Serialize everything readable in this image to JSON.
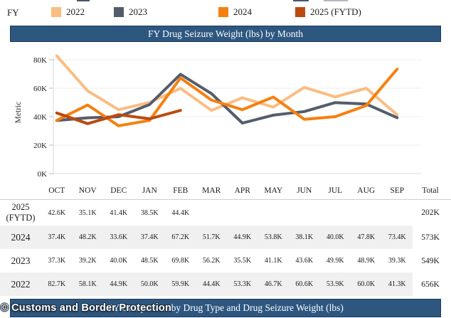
{
  "legend": {
    "title": "FY",
    "items": [
      {
        "label": "2022",
        "color": "#FABD82"
      },
      {
        "label": "2023",
        "color": "#545D6C"
      },
      {
        "label": "2024",
        "color": "#F5800F"
      },
      {
        "label": "2025 (FYTD)",
        "color": "#BC4A10"
      }
    ]
  },
  "section_titles": {
    "top": "FY Drug Seizure Weight (lbs) by Month",
    "bottom": "FY Comparison by Drug Type and Drug Seizure Weight (lbs)"
  },
  "watermark": "© Customs and Border Protection",
  "chart_data": {
    "type": "line",
    "title": "FY Drug Seizure Weight (lbs) by Month",
    "xlabel": "",
    "ylabel": "Metric",
    "units": "thousands of lbs",
    "ylim": [
      0,
      86
    ],
    "grid": true,
    "legend_position": "top",
    "y_ticks": [
      "0K",
      "20K",
      "40K",
      "60K",
      "80K"
    ],
    "y_tick_values": [
      0,
      20,
      40,
      60,
      80
    ],
    "categories": [
      "OCT",
      "NOV",
      "DEC",
      "JAN",
      "FEB",
      "MAR",
      "APR",
      "MAY",
      "JUN",
      "JUL",
      "AUG",
      "SEP"
    ],
    "series": [
      {
        "name": "2022",
        "color": "#FABD82",
        "values": [
          82.7,
          58.1,
          44.9,
          50.0,
          59.9,
          44.4,
          53.3,
          46.7,
          60.6,
          53.9,
          60.0,
          41.3
        ],
        "total": "656K"
      },
      {
        "name": "2023",
        "color": "#545D6C",
        "values": [
          37.3,
          39.2,
          40.0,
          48.5,
          69.8,
          56.2,
          35.5,
          41.1,
          43.6,
          49.9,
          48.9,
          39.3
        ],
        "total": "549K"
      },
      {
        "name": "2024",
        "color": "#F5800F",
        "values": [
          37.4,
          48.2,
          33.6,
          37.4,
          67.2,
          51.7,
          44.9,
          53.8,
          38.1,
          40.0,
          47.8,
          73.4
        ],
        "total": "573K"
      },
      {
        "name": "2025 (FYTD)",
        "color": "#BC4A10",
        "values": [
          42.6,
          35.1,
          41.4,
          38.5,
          44.4
        ],
        "total": "202K"
      }
    ]
  },
  "table": {
    "columns": [
      "OCT",
      "NOV",
      "DEC",
      "JAN",
      "FEB",
      "MAR",
      "APR",
      "MAY",
      "JUN",
      "JUL",
      "AUG",
      "SEP",
      "Total"
    ],
    "rows": [
      {
        "label_lines": [
          "2025",
          "(FYTD)"
        ],
        "values": [
          "42.6K",
          "35.1K",
          "41.4K",
          "38.5K",
          "44.4K",
          "",
          "",
          "",
          "",
          "",
          "",
          ""
        ],
        "total": "202K"
      },
      {
        "label_lines": [
          "2024"
        ],
        "values": [
          "37.4K",
          "48.2K",
          "33.6K",
          "37.4K",
          "67.2K",
          "51.7K",
          "44.9K",
          "53.8K",
          "38.1K",
          "40.0K",
          "47.8K",
          "73.4K"
        ],
        "total": "573K"
      },
      {
        "label_lines": [
          "2023"
        ],
        "values": [
          "37.3K",
          "39.2K",
          "40.0K",
          "48.5K",
          "69.8K",
          "56.2K",
          "35.5K",
          "41.1K",
          "43.6K",
          "49.9K",
          "48.9K",
          "39.3K"
        ],
        "total": "549K"
      },
      {
        "label_lines": [
          "2022"
        ],
        "values": [
          "82.7K",
          "58.1K",
          "44.9K",
          "50.0K",
          "59.9K",
          "44.4K",
          "53.3K",
          "46.7K",
          "60.6K",
          "53.9K",
          "60.0K",
          "41.3K"
        ],
        "total": "656K"
      }
    ]
  }
}
